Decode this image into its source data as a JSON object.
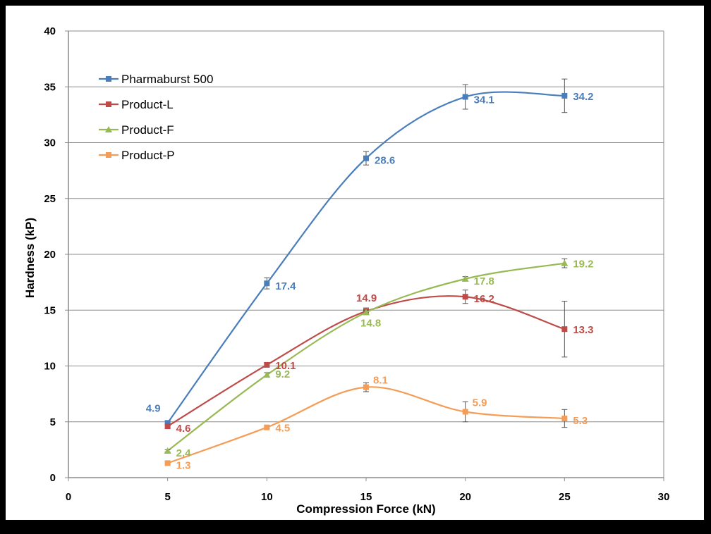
{
  "chart_data": {
    "type": "line",
    "xlabel": "Compression Force (kN)",
    "ylabel": "Hardness (kP)",
    "xlim": [
      0,
      30
    ],
    "ylim": [
      0,
      40
    ],
    "xticks": [
      0,
      5,
      10,
      15,
      20,
      25,
      30
    ],
    "yticks": [
      0,
      5,
      10,
      15,
      20,
      25,
      30,
      35,
      40
    ],
    "grid": "horizontal",
    "legend_position": "top-left",
    "x": [
      5,
      10,
      15,
      20,
      25
    ],
    "series": [
      {
        "name": "Pharmaburst 500",
        "color": "#4a7ebb",
        "marker": "square",
        "values": [
          4.9,
          17.4,
          28.6,
          34.1,
          34.2
        ],
        "labels": [
          "4.9",
          "17.4",
          "28.6",
          "34.1",
          "34.2"
        ],
        "error": [
          0.2,
          0.5,
          0.6,
          1.1,
          1.5
        ]
      },
      {
        "name": "Product-L",
        "color": "#be4b48",
        "marker": "square",
        "values": [
          4.6,
          10.1,
          14.9,
          16.2,
          13.3
        ],
        "labels": [
          "4.6",
          "10.1",
          "14.9",
          "16.2",
          "13.3"
        ],
        "error": [
          0.2,
          0.2,
          0.3,
          0.6,
          2.5
        ]
      },
      {
        "name": "Product-F",
        "color": "#98b954",
        "marker": "triangle",
        "values": [
          2.4,
          9.2,
          14.8,
          17.8,
          19.2
        ],
        "labels": [
          "2.4",
          "9.2",
          "14.8",
          "17.8",
          "19.2"
        ],
        "error": [
          0.1,
          0.2,
          0.2,
          0.2,
          0.4
        ]
      },
      {
        "name": "Product-P",
        "color": "#f59d56",
        "marker": "square",
        "values": [
          1.3,
          4.5,
          8.1,
          5.9,
          5.3
        ],
        "labels": [
          "1.3",
          "4.5",
          "8.1",
          "5.9",
          "5.3"
        ],
        "error": [
          0.1,
          0.1,
          0.4,
          0.9,
          0.8
        ]
      }
    ]
  }
}
